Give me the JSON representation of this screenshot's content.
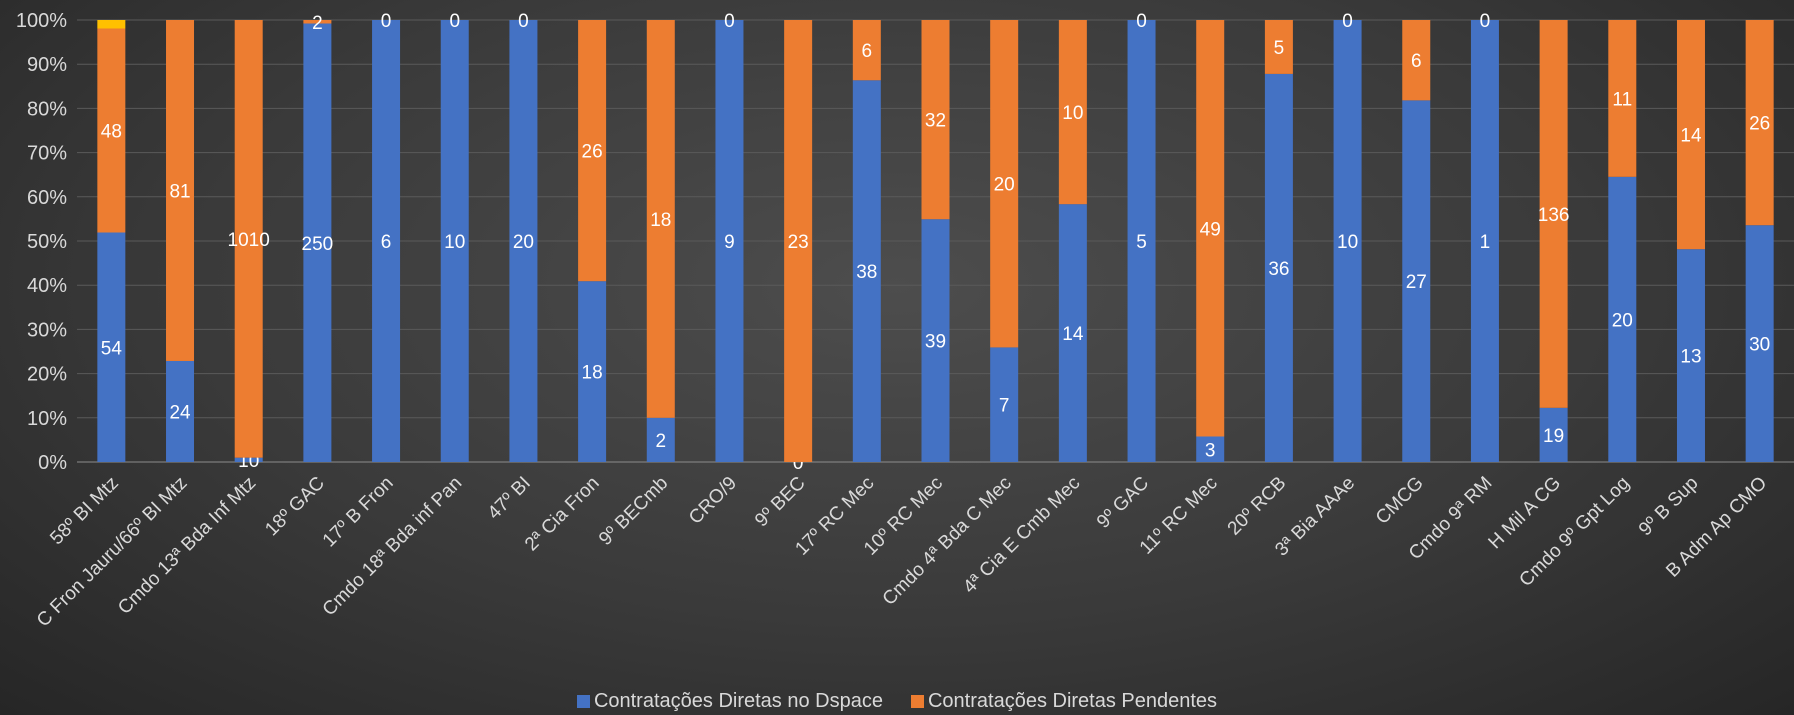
{
  "chart_data": {
    "type": "bar",
    "stacked": "percent",
    "categories": [
      "58º BI Mtz",
      "C Fron Jauru/66º BI Mtz",
      "Cmdo 13ª Bda Inf Mtz",
      "18º GAC",
      "17º B Fron",
      "Cmdo 18ª Bda inf Pan",
      "47º BI",
      "2ª Cia Fron",
      "9º BECmb",
      "CRO/9",
      "9º BEC",
      "17º RC Mec",
      "10º RC Mec",
      "Cmdo 4ª Bda C Mec",
      "4ª Cia E Cmb Mec",
      "9º GAC",
      "11º RC Mec",
      "20º RCB",
      "3ª Bia AAAe",
      "CMCG",
      "Cmdo 9ª RM",
      "H Mil A CG",
      "Cmdo 9º Gpt Log",
      "9º B Sup",
      "B Adm Ap CMO"
    ],
    "series": [
      {
        "name": "Contratações Diretas no Dspace",
        "color": "#4472c4",
        "values": [
          54,
          24,
          10,
          250,
          6,
          10,
          20,
          18,
          2,
          9,
          0,
          38,
          39,
          7,
          14,
          5,
          3,
          36,
          10,
          27,
          1,
          19,
          20,
          13,
          30
        ],
        "labels": [
          "54",
          "24",
          "10",
          "250",
          "6",
          "10",
          "20",
          "18",
          "2",
          "9",
          "0",
          "38",
          "39",
          "7",
          "14",
          "5",
          "3",
          "36",
          "10",
          "27",
          "1",
          "19",
          "20",
          "13",
          "30"
        ]
      },
      {
        "name": "Contratações Diretas Pendentes",
        "color": "#ed7d31",
        "values": [
          48,
          81,
          1010,
          2,
          0,
          0,
          0,
          26,
          18,
          0,
          23,
          6,
          32,
          20,
          10,
          0,
          49,
          5,
          0,
          6,
          0,
          136,
          11,
          14,
          26
        ],
        "labels": [
          "48",
          "81",
          "1010",
          "2",
          "0",
          "0",
          "0",
          "26",
          "18",
          "0",
          "23",
          "6",
          "32",
          "20",
          "10",
          "0",
          "49",
          "5",
          "0",
          "6",
          "0",
          "136",
          "11",
          "14",
          "26"
        ]
      },
      {
        "name": "",
        "color": "#ffc000",
        "values": [
          2,
          0,
          0,
          0,
          0,
          0,
          0,
          0,
          0,
          0,
          0,
          0,
          0,
          0,
          0,
          0,
          0,
          0,
          0,
          0,
          0,
          0,
          0,
          0,
          0
        ],
        "labels": [
          "",
          "",
          "",
          "",
          "",
          "",
          "",
          "",
          "",
          "",
          "",
          "",
          "",
          "",
          "",
          "",
          "",
          "",
          "",
          "",
          "",
          "",
          "",
          "",
          ""
        ]
      }
    ],
    "yaxis": {
      "min": 0,
      "max": 100,
      "step": 10,
      "format": "percent",
      "tick_labels": [
        "0%",
        "10%",
        "20%",
        "30%",
        "40%",
        "50%",
        "60%",
        "70%",
        "80%",
        "90%",
        "100%"
      ]
    },
    "grid": true,
    "legend_position": "bottom"
  },
  "legend": {
    "items": [
      {
        "label": "Contratações Diretas no Dspace",
        "color": "#4472c4"
      },
      {
        "label": "Contratações Diretas Pendentes",
        "color": "#ed7d31"
      }
    ]
  }
}
